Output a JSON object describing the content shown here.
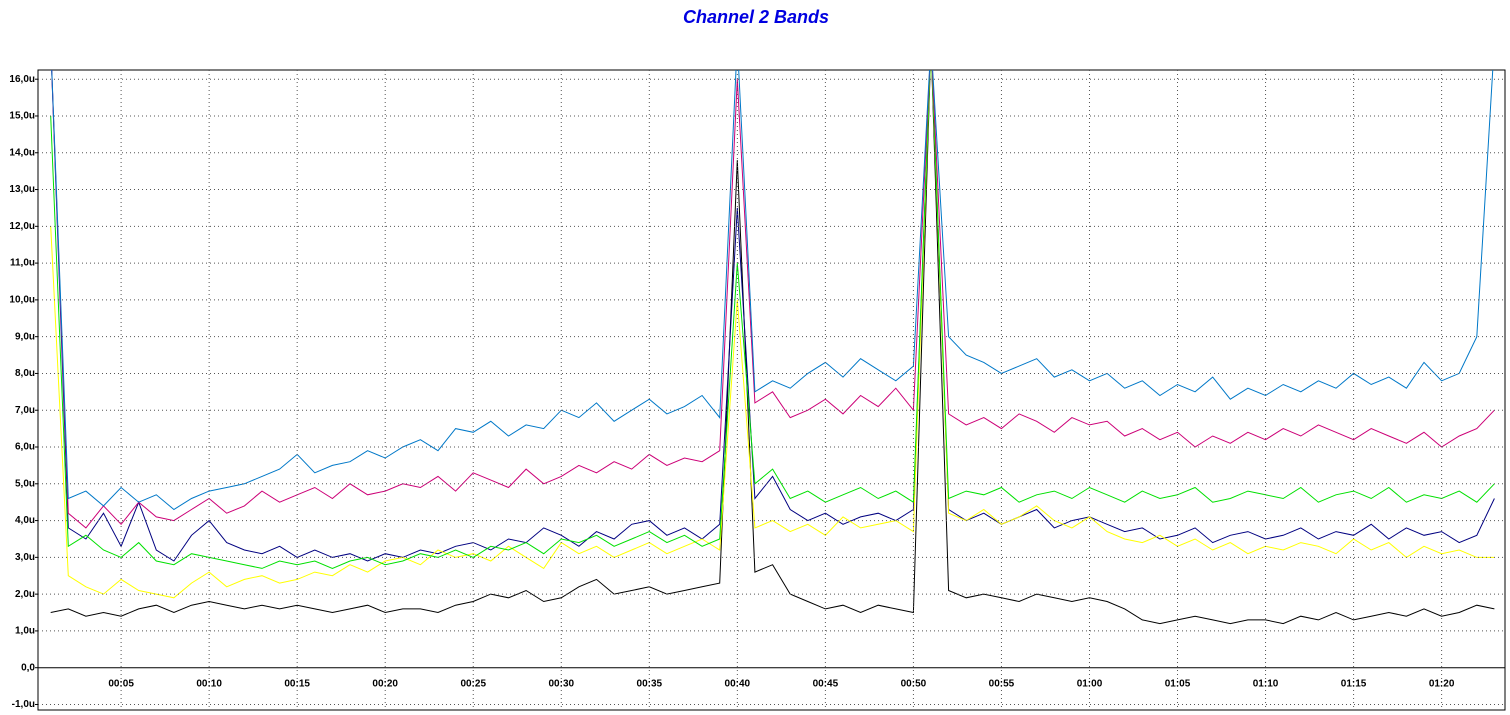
{
  "chart_data": {
    "type": "line",
    "title": "Channel 2 Bands",
    "x": [
      1,
      2,
      3,
      4,
      5,
      6,
      7,
      8,
      9,
      10,
      11,
      12,
      13,
      14,
      15,
      16,
      17,
      18,
      19,
      20,
      21,
      22,
      23,
      24,
      25,
      26,
      27,
      28,
      29,
      30,
      31,
      32,
      33,
      34,
      35,
      36,
      37,
      38,
      39,
      40,
      41,
      42,
      43,
      44,
      45,
      46,
      47,
      48,
      49,
      50,
      51,
      52,
      53,
      54,
      55,
      56,
      57,
      58,
      59,
      60,
      61,
      62,
      63,
      64,
      65,
      66,
      67,
      68,
      69,
      70,
      71,
      72,
      73,
      74,
      75,
      76,
      77,
      78,
      79,
      80,
      81,
      82,
      83
    ],
    "series": [
      {
        "color": "#000000",
        "values": [
          1.5,
          1.6,
          1.4,
          1.5,
          1.4,
          1.6,
          1.7,
          1.5,
          1.7,
          1.8,
          1.7,
          1.6,
          1.7,
          1.6,
          1.7,
          1.6,
          1.5,
          1.6,
          1.7,
          1.5,
          1.6,
          1.6,
          1.5,
          1.7,
          1.8,
          2.0,
          1.9,
          2.1,
          1.8,
          1.9,
          2.2,
          2.4,
          2.0,
          2.1,
          2.2,
          2.0,
          2.1,
          2.2,
          2.3,
          13.8,
          2.6,
          2.8,
          2.0,
          1.8,
          1.6,
          1.7,
          1.5,
          1.7,
          1.6,
          1.5,
          17,
          2.1,
          1.9,
          2.0,
          1.9,
          1.8,
          2.0,
          1.9,
          1.8,
          1.9,
          1.8,
          1.6,
          1.3,
          1.2,
          1.3,
          1.4,
          1.3,
          1.2,
          1.3,
          1.3,
          1.2,
          1.4,
          1.3,
          1.5,
          1.3,
          1.4,
          1.5,
          1.4,
          1.6,
          1.4,
          1.5,
          1.7,
          1.6
        ]
      },
      {
        "color": "#000080",
        "values": [
          17,
          3.8,
          3.5,
          4.2,
          3.3,
          4.5,
          3.2,
          2.9,
          3.6,
          4.0,
          3.4,
          3.2,
          3.1,
          3.3,
          3.0,
          3.2,
          3.0,
          3.1,
          2.9,
          3.1,
          3.0,
          3.2,
          3.1,
          3.3,
          3.4,
          3.2,
          3.5,
          3.4,
          3.8,
          3.6,
          3.3,
          3.7,
          3.5,
          3.9,
          4.0,
          3.6,
          3.8,
          3.5,
          3.9,
          12.5,
          4.6,
          5.2,
          4.3,
          4.0,
          4.2,
          3.9,
          4.1,
          4.2,
          4.0,
          4.3,
          17,
          4.3,
          4.0,
          4.2,
          3.9,
          4.1,
          4.3,
          3.8,
          4.0,
          4.1,
          3.9,
          3.7,
          3.8,
          3.5,
          3.6,
          3.8,
          3.4,
          3.6,
          3.7,
          3.5,
          3.6,
          3.8,
          3.5,
          3.7,
          3.6,
          3.9,
          3.5,
          3.8,
          3.6,
          3.7,
          3.4,
          3.6,
          4.6
        ]
      },
      {
        "color": "#ffff00",
        "values": [
          12,
          2.5,
          2.2,
          2.0,
          2.4,
          2.1,
          2.0,
          1.9,
          2.3,
          2.6,
          2.2,
          2.4,
          2.5,
          2.3,
          2.4,
          2.6,
          2.5,
          2.8,
          2.6,
          2.9,
          3.0,
          2.8,
          3.2,
          3.0,
          3.1,
          2.9,
          3.3,
          3.0,
          2.7,
          3.4,
          3.1,
          3.3,
          3.0,
          3.2,
          3.4,
          3.1,
          3.3,
          3.5,
          3.2,
          10,
          3.8,
          4.0,
          3.7,
          3.9,
          3.6,
          4.1,
          3.8,
          3.9,
          4.0,
          3.7,
          17,
          4.2,
          4.0,
          4.3,
          3.9,
          4.1,
          4.4,
          4.0,
          3.8,
          4.1,
          3.7,
          3.5,
          3.4,
          3.6,
          3.3,
          3.5,
          3.2,
          3.4,
          3.1,
          3.3,
          3.2,
          3.4,
          3.3,
          3.1,
          3.5,
          3.2,
          3.4,
          3.0,
          3.3,
          3.1,
          3.2,
          3.0,
          3.0
        ]
      },
      {
        "color": "#00e000",
        "values": [
          15,
          3.3,
          3.6,
          3.2,
          3.0,
          3.4,
          2.9,
          2.8,
          3.1,
          3.0,
          2.9,
          2.8,
          2.7,
          2.9,
          2.8,
          2.9,
          2.7,
          2.9,
          3.0,
          2.8,
          2.9,
          3.1,
          3.0,
          3.2,
          3.0,
          3.3,
          3.2,
          3.4,
          3.1,
          3.5,
          3.4,
          3.6,
          3.3,
          3.5,
          3.7,
          3.4,
          3.6,
          3.3,
          3.5,
          11,
          5.0,
          5.4,
          4.6,
          4.8,
          4.5,
          4.7,
          4.9,
          4.6,
          4.8,
          4.5,
          17,
          4.6,
          4.8,
          4.7,
          4.9,
          4.5,
          4.7,
          4.8,
          4.6,
          4.9,
          4.7,
          4.5,
          4.8,
          4.6,
          4.7,
          4.9,
          4.5,
          4.6,
          4.8,
          4.7,
          4.6,
          4.9,
          4.5,
          4.7,
          4.8,
          4.6,
          4.9,
          4.5,
          4.7,
          4.6,
          4.8,
          4.5,
          5.0
        ]
      },
      {
        "color": "#cc0077",
        "values": [
          17,
          4.2,
          3.8,
          4.4,
          3.9,
          4.5,
          4.1,
          4.0,
          4.3,
          4.6,
          4.2,
          4.4,
          4.8,
          4.5,
          4.7,
          4.9,
          4.6,
          5.0,
          4.7,
          4.8,
          5.0,
          4.9,
          5.2,
          4.8,
          5.3,
          5.1,
          4.9,
          5.4,
          5.0,
          5.2,
          5.5,
          5.3,
          5.6,
          5.4,
          5.8,
          5.5,
          5.7,
          5.6,
          5.9,
          16,
          7.2,
          7.5,
          6.8,
          7.0,
          7.3,
          6.9,
          7.4,
          7.1,
          7.6,
          7.0,
          17,
          6.9,
          6.6,
          6.8,
          6.5,
          6.9,
          6.7,
          6.4,
          6.8,
          6.6,
          6.7,
          6.3,
          6.5,
          6.2,
          6.4,
          6.0,
          6.3,
          6.1,
          6.4,
          6.2,
          6.5,
          6.3,
          6.6,
          6.4,
          6.2,
          6.5,
          6.3,
          6.1,
          6.4,
          6.0,
          6.3,
          6.5,
          7.0
        ]
      },
      {
        "color": "#0078c8",
        "values": [
          17,
          4.6,
          4.8,
          4.4,
          4.9,
          4.5,
          4.7,
          4.3,
          4.6,
          4.8,
          4.9,
          5.0,
          5.2,
          5.4,
          5.8,
          5.3,
          5.5,
          5.6,
          5.9,
          5.7,
          6.0,
          6.2,
          5.9,
          6.5,
          6.4,
          6.7,
          6.3,
          6.6,
          6.5,
          7.0,
          6.8,
          7.2,
          6.7,
          7.0,
          7.3,
          6.9,
          7.1,
          7.4,
          6.8,
          17,
          7.5,
          7.8,
          7.6,
          8.0,
          8.3,
          7.9,
          8.4,
          8.1,
          7.8,
          8.2,
          17,
          9.0,
          8.5,
          8.3,
          8.0,
          8.2,
          8.4,
          7.9,
          8.1,
          7.8,
          8.0,
          7.6,
          7.8,
          7.4,
          7.7,
          7.5,
          7.9,
          7.3,
          7.6,
          7.4,
          7.7,
          7.5,
          7.8,
          7.6,
          8.0,
          7.7,
          7.9,
          7.6,
          8.3,
          7.8,
          8.0,
          9.0,
          17
        ]
      }
    ],
    "xlim": [
      0.28,
      83.6
    ],
    "xticks": [
      {
        "value": 5,
        "label": "00:05"
      },
      {
        "value": 10,
        "label": "00:10"
      },
      {
        "value": 15,
        "label": "00:15"
      },
      {
        "value": 20,
        "label": "00:20"
      },
      {
        "value": 25,
        "label": "00:25"
      },
      {
        "value": 30,
        "label": "00:30"
      },
      {
        "value": 35,
        "label": "00:35"
      },
      {
        "value": 40,
        "label": "00:40"
      },
      {
        "value": 45,
        "label": "00:45"
      },
      {
        "value": 50,
        "label": "00:50"
      },
      {
        "value": 55,
        "label": "00:55"
      },
      {
        "value": 60,
        "label": "01:00"
      },
      {
        "value": 65,
        "label": "01:05"
      },
      {
        "value": 70,
        "label": "01:10"
      },
      {
        "value": 75,
        "label": "01:15"
      },
      {
        "value": 80,
        "label": "01:20"
      }
    ],
    "ylim": [
      -1.15,
      16.25
    ],
    "yticks": [
      {
        "value": 16,
        "label": "16,0u"
      },
      {
        "value": 15,
        "label": "15,0u"
      },
      {
        "value": 14,
        "label": "14,0u"
      },
      {
        "value": 13,
        "label": "13,0u"
      },
      {
        "value": 12,
        "label": "12,0u"
      },
      {
        "value": 11,
        "label": "11,0u"
      },
      {
        "value": 10,
        "label": "10,0u"
      },
      {
        "value": 9,
        "label": "9,0u"
      },
      {
        "value": 8,
        "label": "8,0u"
      },
      {
        "value": 7,
        "label": "7,0u"
      },
      {
        "value": 6,
        "label": "6,0u"
      },
      {
        "value": 5,
        "label": "5,0u"
      },
      {
        "value": 4,
        "label": "4,0u"
      },
      {
        "value": 3,
        "label": "3,0u"
      },
      {
        "value": 2,
        "label": "2,0u"
      },
      {
        "value": 1,
        "label": "1,0u"
      },
      {
        "value": 0,
        "label": "0,0"
      },
      {
        "value": -1,
        "label": "-1,0u"
      }
    ],
    "grid": true
  }
}
